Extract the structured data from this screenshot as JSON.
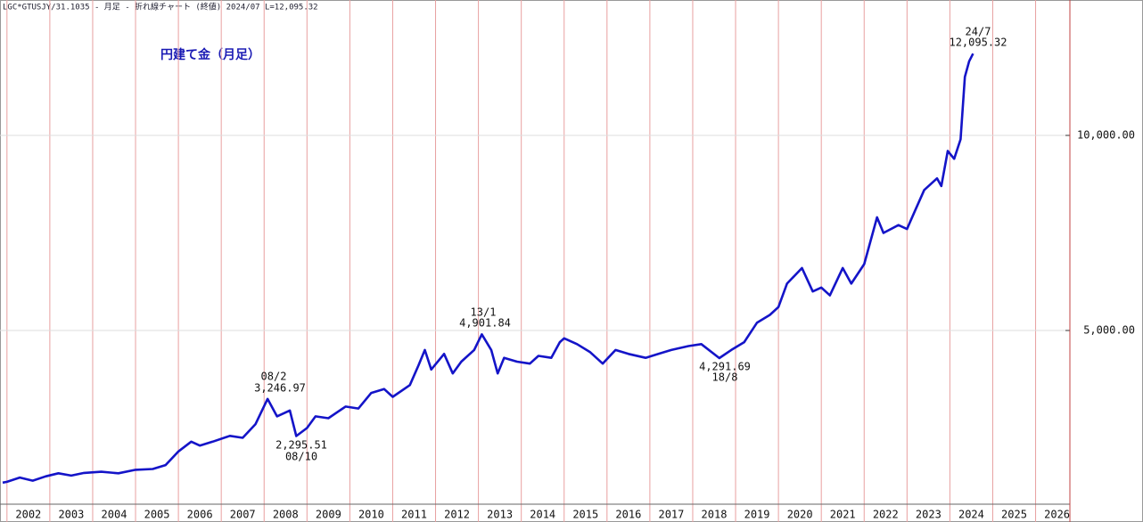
{
  "chart_data": {
    "type": "line",
    "header": "LGC*GTUSJY/31.1035 - 月足 - 折れ線チャート (終値) 2024/07 L=12,095.32",
    "title": "円建て金（月足）",
    "x": [
      2001.9,
      2002.0,
      2002.3,
      2002.6,
      2002.9,
      2003.2,
      2003.5,
      2003.8,
      2004.2,
      2004.6,
      2005.0,
      2005.4,
      2005.7,
      2006.0,
      2006.3,
      2006.5,
      2006.8,
      2007.2,
      2007.5,
      2007.8,
      2008.08,
      2008.3,
      2008.6,
      2008.75,
      2009.0,
      2009.2,
      2009.5,
      2009.9,
      2010.2,
      2010.5,
      2010.8,
      2011.0,
      2011.4,
      2011.6,
      2011.75,
      2011.9,
      2012.2,
      2012.4,
      2012.6,
      2012.9,
      2013.08,
      2013.3,
      2013.45,
      2013.6,
      2013.9,
      2014.2,
      2014.4,
      2014.7,
      2014.9,
      2015.0,
      2015.3,
      2015.6,
      2015.9,
      2016.2,
      2016.5,
      2016.9,
      2017.2,
      2017.5,
      2017.9,
      2018.2,
      2018.62,
      2018.9,
      2019.2,
      2019.5,
      2019.8,
      2020.0,
      2020.2,
      2020.55,
      2020.8,
      2021.0,
      2021.2,
      2021.5,
      2021.7,
      2022.0,
      2022.2,
      2022.3,
      2022.45,
      2022.8,
      2023.0,
      2023.2,
      2023.4,
      2023.7,
      2023.8,
      2023.95,
      2024.1,
      2024.25,
      2024.35,
      2024.45,
      2024.54
    ],
    "series": [
      {
        "color": "#1414c8",
        "values": [
          1100,
          1120,
          1230,
          1150,
          1260,
          1340,
          1280,
          1350,
          1380,
          1340,
          1430,
          1450,
          1550,
          1900,
          2150,
          2050,
          2150,
          2300,
          2250,
          2600,
          3246.97,
          2800,
          2950,
          2295.51,
          2500,
          2800,
          2750,
          3050,
          3000,
          3400,
          3500,
          3300,
          3600,
          4100,
          4500,
          4000,
          4400,
          3900,
          4200,
          4500,
          4901.84,
          4500,
          3900,
          4300,
          4200,
          4150,
          4350,
          4300,
          4700,
          4800,
          4650,
          4450,
          4150,
          4500,
          4400,
          4300,
          4400,
          4500,
          4600,
          4650,
          4291.69,
          4500,
          4700,
          5200,
          5400,
          5600,
          6200,
          6600,
          6000,
          6100,
          5900,
          6600,
          6200,
          6700,
          7500,
          7900,
          7500,
          7700,
          7600,
          8100,
          8600,
          8900,
          8700,
          9600,
          9400,
          9900,
          11500,
          11900,
          12095.32
        ]
      }
    ],
    "xlim": [
      2001.9,
      2026.8
    ],
    "xticks": [
      2002,
      2003,
      2004,
      2005,
      2006,
      2007,
      2008,
      2009,
      2010,
      2011,
      2012,
      2013,
      2014,
      2015,
      2016,
      2017,
      2018,
      2019,
      2020,
      2021,
      2022,
      2023,
      2024,
      2025,
      2026
    ],
    "ylim": [
      548,
      13470
    ],
    "yticks": [
      {
        "value": 5000,
        "label": "5,000.00"
      },
      {
        "value": 10000,
        "label": "10,000.00"
      }
    ],
    "grid": true,
    "annotations": [
      "08/2",
      "3,246.97",
      "2,295.51",
      "08/10",
      "13/1",
      "4,901.84",
      "4,291.69",
      "18/8",
      "24/7",
      "12,095.32"
    ]
  }
}
